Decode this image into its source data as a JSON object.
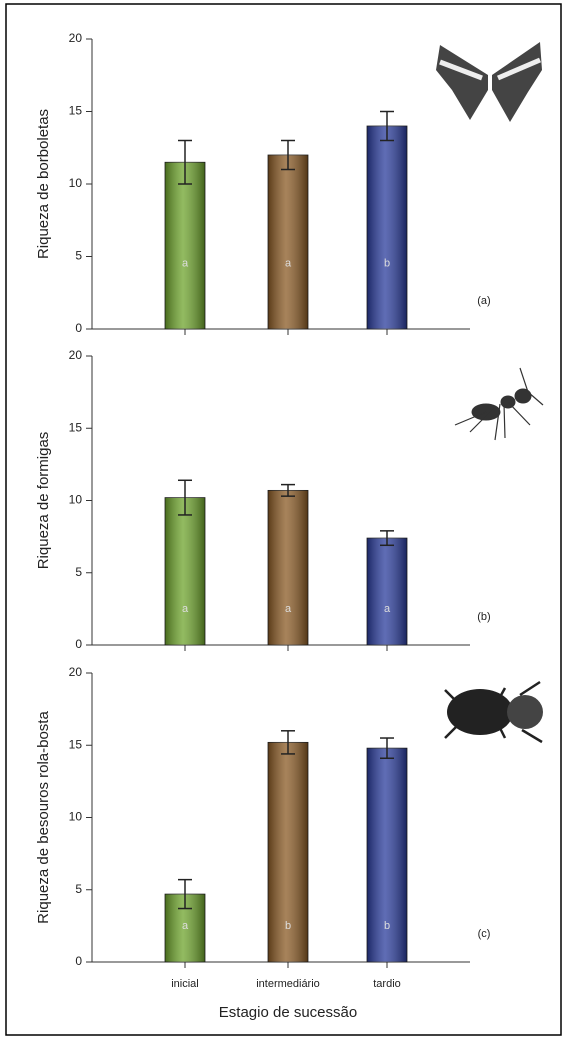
{
  "chart_data": [
    {
      "type": "bar",
      "ylabel": "Riqueza de borboletas",
      "panel_label": "(a)",
      "categories": [
        null,
        null,
        null
      ],
      "values": [
        11.5,
        12,
        14
      ],
      "errors": [
        1.5,
        1,
        1
      ],
      "bar_labels": [
        "a",
        "a",
        "b"
      ],
      "colors": [
        "#6ea42c",
        "#8a5a24",
        "#2a3c9c"
      ],
      "ylim": [
        0,
        20
      ],
      "yticks": [
        0,
        5,
        10,
        15,
        20
      ]
    },
    {
      "type": "bar",
      "ylabel": "Riqueza de formigas",
      "panel_label": "(b)",
      "categories": [
        null,
        null,
        null
      ],
      "values": [
        10.2,
        10.7,
        7.4
      ],
      "errors": [
        1.2,
        0.4,
        0.5
      ],
      "bar_labels": [
        "a",
        "a",
        "a"
      ],
      "colors": [
        "#6ea42c",
        "#8a5a24",
        "#2a3c9c"
      ],
      "ylim": [
        0,
        20
      ],
      "yticks": [
        0,
        5,
        10,
        15,
        20
      ]
    },
    {
      "type": "bar",
      "ylabel": "Riqueza de besouros rola-bosta",
      "panel_label": "(c)",
      "xlabel": "Estagio de sucessão",
      "categories": [
        "inicial",
        "intermediário",
        "tardio"
      ],
      "values": [
        4.7,
        15.2,
        14.8
      ],
      "errors": [
        1,
        0.8,
        0.7
      ],
      "bar_labels": [
        "a",
        "b",
        "b"
      ],
      "colors": [
        "#6ea42c",
        "#8a5a24",
        "#2a3c9c"
      ],
      "ylim": [
        0,
        20
      ],
      "yticks": [
        0,
        5,
        10,
        15,
        20
      ]
    }
  ]
}
